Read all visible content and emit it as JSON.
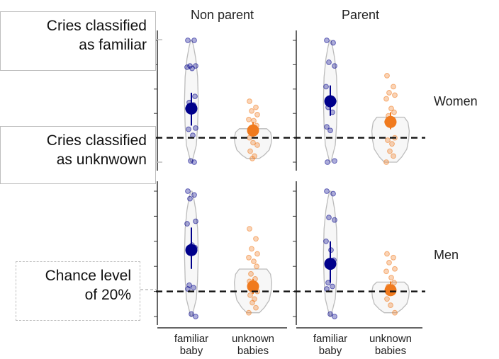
{
  "chart_data": {
    "type": "violin",
    "columns": [
      "Non parent",
      "Parent"
    ],
    "rows": [
      "Women",
      "Men"
    ],
    "categories": [
      "familiar baby",
      "unknown babies"
    ],
    "category_lines": [
      [
        "familiar",
        "baby"
      ],
      [
        "unknown",
        "babies"
      ]
    ],
    "ylim": [
      0,
      1
    ],
    "chance_level": 0.2,
    "colors": {
      "familiar": "#00008b",
      "unknown": "#f07a1e",
      "violin_fill": "#f7f7f7",
      "violin_stroke": "#bcbcbc"
    },
    "panels": [
      {
        "row": "Women",
        "column": "Non parent",
        "familiar": {
          "mean": 0.44,
          "ci": [
            0.3,
            0.57
          ],
          "points": [
            1.0,
            1.0,
            0.79,
            0.79,
            0.78,
            0.77,
            0.54,
            0.49,
            0.47,
            0.44,
            0.42,
            0.28,
            0.27,
            0.22,
            0.01,
            0.0
          ]
        },
        "unknown": {
          "mean": 0.26,
          "ci": [
            0.21,
            0.33
          ],
          "points": [
            0.5,
            0.45,
            0.42,
            0.39,
            0.35,
            0.34,
            0.3,
            0.28,
            0.24,
            0.2,
            0.16,
            0.14,
            0.09,
            0.05,
            0.03
          ]
        }
      },
      {
        "row": "Women",
        "column": "Parent",
        "familiar": {
          "mean": 0.5,
          "ci": [
            0.38,
            0.63
          ],
          "points": [
            1.0,
            0.98,
            0.82,
            0.79,
            0.62,
            0.52,
            0.5,
            0.45,
            0.41,
            0.29,
            0.26,
            0.01,
            0.0
          ]
        },
        "unknown": {
          "mean": 0.33,
          "ci": [
            0.27,
            0.41
          ],
          "points": [
            0.71,
            0.62,
            0.57,
            0.55,
            0.52,
            0.44,
            0.41,
            0.38,
            0.35,
            0.33,
            0.31,
            0.2,
            0.18,
            0.15,
            0.09,
            0.05,
            0.0
          ]
        }
      },
      {
        "row": "Men",
        "column": "Non parent",
        "familiar": {
          "mean": 0.53,
          "ci": [
            0.38,
            0.71
          ],
          "points": [
            1.0,
            0.97,
            0.94,
            0.76,
            0.74,
            0.57,
            0.55,
            0.25,
            0.23,
            0.22,
            0.02,
            0.0
          ]
        },
        "unknown": {
          "mean": 0.24,
          "ci": [
            0.18,
            0.3
          ],
          "points": [
            0.7,
            0.62,
            0.54,
            0.5,
            0.47,
            0.44,
            0.4,
            0.34,
            0.3,
            0.28,
            0.24,
            0.2,
            0.17,
            0.14,
            0.11,
            0.07,
            0.03
          ]
        }
      },
      {
        "row": "Men",
        "column": "Parent",
        "familiar": {
          "mean": 0.42,
          "ci": [
            0.27,
            0.6
          ],
          "points": [
            1.0,
            0.98,
            0.79,
            0.77,
            0.6,
            0.53,
            0.45,
            0.27,
            0.24,
            0.22,
            0.02,
            0.0
          ]
        },
        "unknown": {
          "mean": 0.21,
          "ci": [
            0.17,
            0.28
          ],
          "points": [
            0.5,
            0.47,
            0.43,
            0.38,
            0.36,
            0.31,
            0.27,
            0.24,
            0.19,
            0.14,
            0.09,
            0.03
          ]
        }
      }
    ]
  },
  "callouts": {
    "familiar": [
      "Cries classified",
      "as familiar"
    ],
    "unknown": [
      "Cries classified",
      "as unknwown"
    ],
    "chance": [
      "Chance level",
      "of 20%"
    ]
  }
}
